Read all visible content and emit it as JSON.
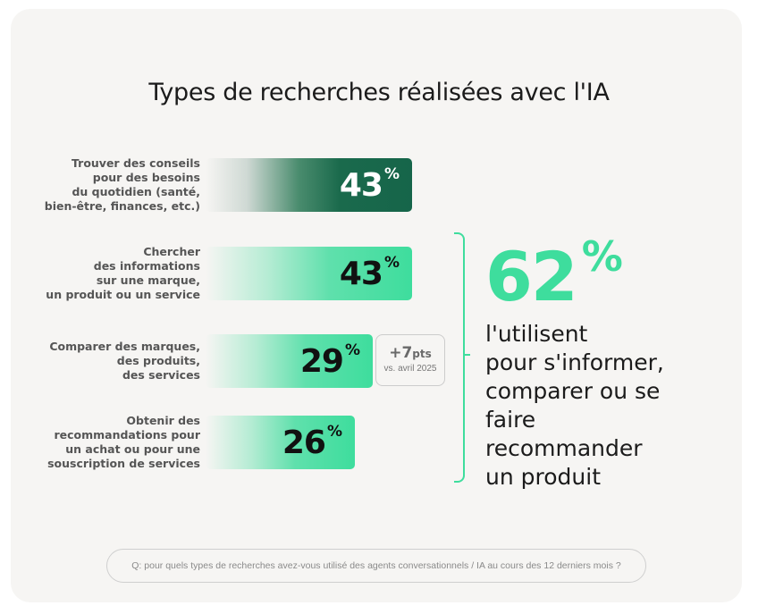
{
  "chart_data": {
    "type": "bar",
    "title": "Types de recherches réalisées avec l'IA",
    "unit": "%",
    "xlim": [
      0,
      50
    ],
    "categories": [
      [
        "Trouver des conseils",
        "pour des besoins",
        "du quotidien (santé,",
        "bien-être, finances, etc.)"
      ],
      [
        "Chercher",
        "des informations",
        "sur une marque,",
        "un produit ou un service"
      ],
      [
        "Comparer des marques,",
        "des produits,",
        "des services"
      ],
      [
        "Obtenir des",
        "recommandations pour",
        "un achat ou pour une",
        "souscription de services"
      ]
    ],
    "values": [
      43,
      43,
      29,
      26
    ],
    "value_labels": [
      "43",
      "43",
      "29",
      "26"
    ],
    "pct_symbol": "%",
    "highlight_index": 0,
    "annotation": {
      "value": "+7",
      "unit": "pts",
      "note": "vs. avril 2025",
      "bar_index": 2
    },
    "summary": {
      "value": "62",
      "symbol": "%",
      "lines": [
        "l'utilisent",
        "pour s'informer,",
        "comparer ou se",
        "faire",
        "recommander",
        "un produit"
      ]
    },
    "footnote": "Q: pour quels types de recherches avez-vous utilisé des agents conversationnels / IA au cours des 12 derniers mois ?"
  },
  "colors": {
    "dark_bar": "#16654a",
    "green_bar": "#3edd9d",
    "accent": "#3edd9d",
    "dark_text": "#1b1b1b"
  }
}
